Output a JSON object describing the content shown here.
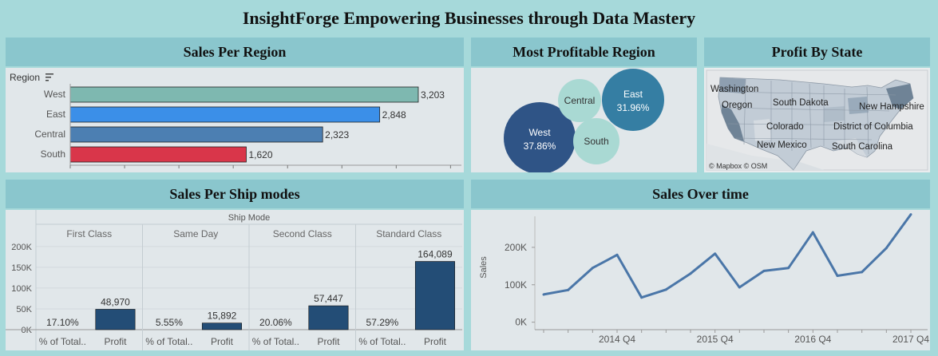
{
  "dashboard": {
    "title": "InsightForge Empowering Businesses through Data Mastery"
  },
  "panels": {
    "region": {
      "title": "Sales Per Region"
    },
    "profitable": {
      "title": "Most Profitable Region"
    },
    "state": {
      "title": "Profit By State"
    },
    "shipmodes": {
      "title": "Sales Per Ship modes"
    },
    "overtime": {
      "title": "Sales Over time"
    }
  },
  "colors": {
    "west": "#7eb8b0",
    "east": "#3b8fe8",
    "central": "#4c7fb2",
    "south": "#d9364a",
    "bubble_west": "#2f5486",
    "bubble_east": "#357ea3",
    "bubble_light": "#a9d9d3",
    "profit_bar": "#234d76",
    "line": "#4a76a8"
  },
  "chart_data": [
    {
      "type": "bar",
      "title": "Sales Per Region",
      "field_label": "Region",
      "categories": [
        "West",
        "East",
        "Central",
        "South"
      ],
      "values": [
        3203,
        2848,
        2323,
        1620
      ],
      "value_labels": [
        "3,203",
        "2,848",
        "2,323",
        "1,620"
      ],
      "xlim": [
        0,
        3600
      ]
    },
    {
      "type": "bubble",
      "title": "Most Profitable Region",
      "bubbles": [
        {
          "name": "West",
          "share": 37.86,
          "label": "37.86%"
        },
        {
          "name": "East",
          "share": 31.96,
          "label": "31.96%"
        },
        {
          "name": "Central",
          "share": 14.5,
          "label": ""
        },
        {
          "name": "South",
          "share": 15.7,
          "label": ""
        }
      ]
    },
    {
      "type": "bar",
      "title": "Sales Per Ship modes",
      "group_label": "Ship Mode",
      "categories": [
        "First Class",
        "Same Day",
        "Second Class",
        "Standard Class"
      ],
      "sub_columns": [
        "% of Total..",
        "Profit"
      ],
      "percent_labels": [
        "17.10%",
        "5.55%",
        "20.06%",
        "57.29%"
      ],
      "profit_values": [
        48970,
        15892,
        57447,
        164089
      ],
      "profit_labels": [
        "48,970",
        "15,892",
        "57,447",
        "164,089"
      ],
      "yticks": [
        "200K",
        "150K",
        "100K",
        "50K",
        "0K"
      ],
      "ytick_values": [
        200000,
        150000,
        100000,
        50000,
        0
      ],
      "ylim": [
        0,
        215000
      ]
    },
    {
      "type": "line",
      "title": "Sales Over time",
      "ylabel": "Sales",
      "xticks": [
        "2014 Q4",
        "2015 Q4",
        "2016 Q4",
        "2017 Q4"
      ],
      "yticks": [
        "200K",
        "100K",
        "0K"
      ],
      "ytick_values": [
        200000,
        100000,
        0
      ],
      "x": [
        "2014 Q1",
        "2014 Q2",
        "2014 Q3",
        "2014 Q4",
        "2015 Q1",
        "2015 Q2",
        "2015 Q3",
        "2015 Q4",
        "2016 Q1",
        "2016 Q2",
        "2016 Q3",
        "2016 Q4",
        "2017 Q1",
        "2017 Q2",
        "2017 Q3",
        "2017 Q4"
      ],
      "values": [
        74000,
        86000,
        145000,
        180000,
        66000,
        87000,
        130000,
        183000,
        93000,
        137000,
        145000,
        240000,
        124000,
        134000,
        198000,
        288000
      ],
      "ylim": [
        -20000,
        300000
      ]
    }
  ],
  "map": {
    "labels": [
      "Washington",
      "Oregon",
      "South Dakota",
      "New Hampshire",
      "Colorado",
      "District of Columbia",
      "New Mexico",
      "South Carolina"
    ],
    "attribution": "© Mapbox  © OSM"
  }
}
